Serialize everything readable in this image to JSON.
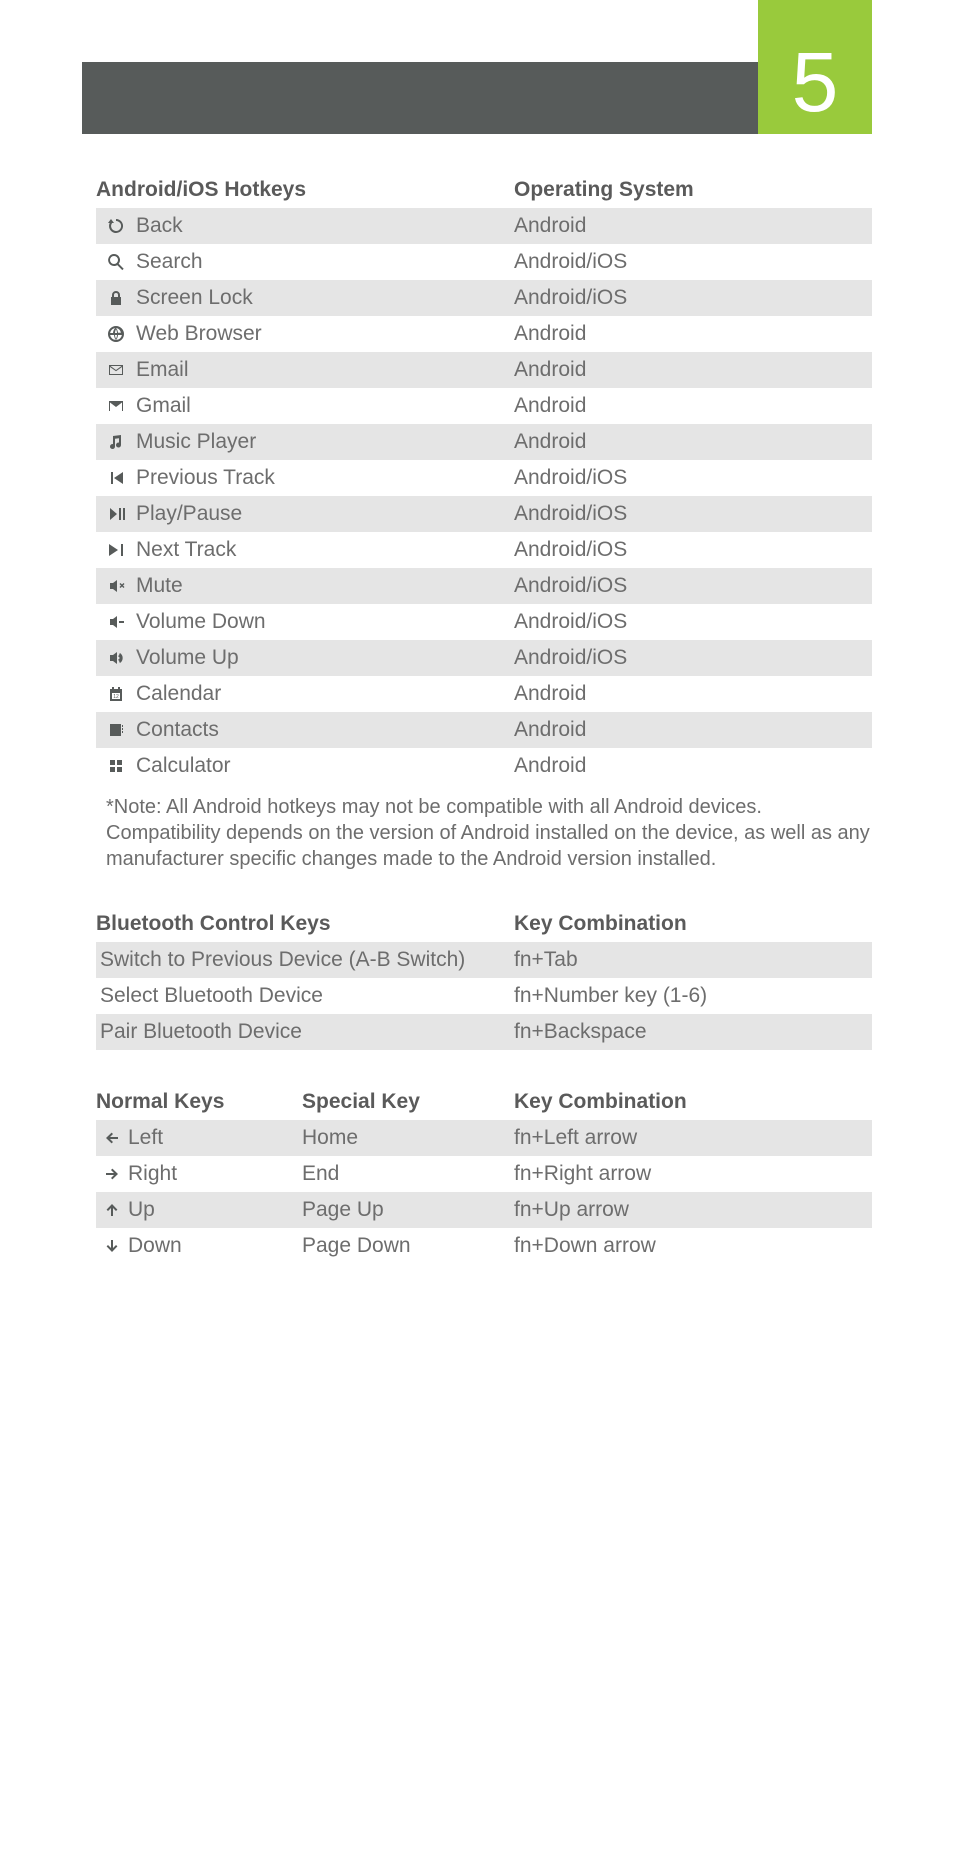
{
  "page_number": "5",
  "colors": {
    "accent": "#99ca3c",
    "header_bar": "#575b5a",
    "stripe": "#e5e5e5",
    "text": "#6d6d6d",
    "heading": "#5a5a5a",
    "icon": "#575b5a",
    "background": "#ffffff"
  },
  "hotkeys": {
    "header_a": "Android/iOS Hotkeys",
    "header_b": "Operating System",
    "rows": [
      {
        "icon": "back",
        "label": "Back",
        "os": "Android"
      },
      {
        "icon": "search",
        "label": "Search",
        "os": "Android/iOS"
      },
      {
        "icon": "lock",
        "label": "Screen Lock",
        "os": "Android/iOS"
      },
      {
        "icon": "globe",
        "label": "Web Browser",
        "os": "Android"
      },
      {
        "icon": "mail",
        "label": "Email",
        "os": "Android"
      },
      {
        "icon": "gmail",
        "label": "Gmail",
        "os": "Android"
      },
      {
        "icon": "music",
        "label": "Music Player",
        "os": "Android"
      },
      {
        "icon": "prev",
        "label": "Previous Track",
        "os": "Android/iOS"
      },
      {
        "icon": "playpause",
        "label": "Play/Pause",
        "os": "Android/iOS"
      },
      {
        "icon": "next",
        "label": "Next Track",
        "os": "Android/iOS"
      },
      {
        "icon": "mute",
        "label": "Mute",
        "os": "Android/iOS"
      },
      {
        "icon": "voldown",
        "label": "Volume Down",
        "os": "Android/iOS"
      },
      {
        "icon": "volup",
        "label": "Volume Up",
        "os": "Android/iOS"
      },
      {
        "icon": "calendar",
        "label": "Calendar",
        "os": "Android"
      },
      {
        "icon": "contacts",
        "label": "Contacts",
        "os": "Android"
      },
      {
        "icon": "calculator",
        "label": "Calculator",
        "os": "Android"
      }
    ]
  },
  "note": "*Note: All Android hotkeys may not be compatible with all Android devices. Compatibility depends on the version of Android installed on the device, as well as any manufacturer specific changes made to the Android version installed.",
  "bluetooth": {
    "header_a": "Bluetooth Control Keys",
    "header_b": "Key Combination",
    "rows": [
      {
        "label": "Switch to Previous Device (A-B Switch)",
        "combo": "fn+Tab"
      },
      {
        "label": "Select Bluetooth Device",
        "combo": "fn+Number key (1-6)"
      },
      {
        "label": "Pair Bluetooth Device",
        "combo": "fn+Backspace"
      }
    ]
  },
  "normal": {
    "header_a": "Normal Keys",
    "header_b": "Special Key",
    "header_c": "Key Combination",
    "rows": [
      {
        "icon": "arrow-left",
        "label": "Left",
        "special": "Home",
        "combo": "fn+Left arrow"
      },
      {
        "icon": "arrow-right",
        "label": "Right",
        "special": "End",
        "combo": "fn+Right arrow"
      },
      {
        "icon": "arrow-up",
        "label": "Up",
        "special": "Page Up",
        "combo": "fn+Up arrow"
      },
      {
        "icon": "arrow-down",
        "label": "Down",
        "special": "Page Down",
        "combo": "fn+Down arrow"
      }
    ]
  }
}
